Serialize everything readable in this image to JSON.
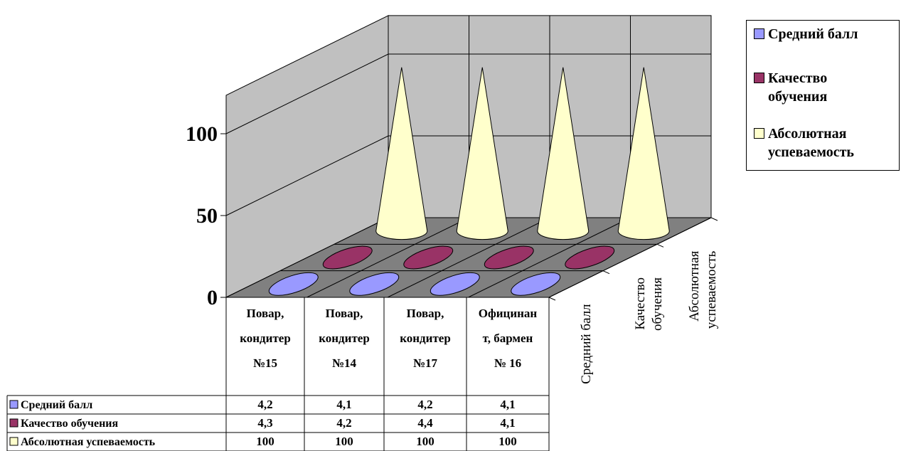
{
  "chart_data": {
    "type": "3d-cone",
    "categories": [
      "Повар, кондитер №15",
      "Повар, кондитер №14",
      "Повар, кондитер №17",
      "Официнант, бармен № 16"
    ],
    "category_lines": [
      [
        "Повар,",
        "кондитер",
        "№15"
      ],
      [
        "Повар,",
        "кондитер",
        "№14"
      ],
      [
        "Повар,",
        "кондитер",
        "№17"
      ],
      [
        "Официнан",
        "т, бармен",
        "№ 16"
      ]
    ],
    "series": [
      {
        "name": "Средний балл",
        "values": [
          4.2,
          4.1,
          4.2,
          4.1
        ],
        "labels": [
          "4,2",
          "4,1",
          "4,2",
          "4,1"
        ],
        "color": "#9999ff"
      },
      {
        "name": "Качество обучения",
        "values": [
          4.3,
          4.2,
          4.4,
          4.1
        ],
        "labels": [
          "4,3",
          "4,2",
          "4,4",
          "4,1"
        ],
        "color": "#993366"
      },
      {
        "name": "Абсолютная успеваемость",
        "values": [
          100,
          100,
          100,
          100
        ],
        "labels": [
          "100",
          "100",
          "100",
          "100"
        ],
        "color": "#ffffcc"
      }
    ],
    "depth_labels": [
      [
        "Средний балл"
      ],
      [
        "Качество",
        "обучения"
      ],
      [
        "Абсолютная",
        "успеваемость"
      ]
    ],
    "y_ticks": [
      "0",
      "50",
      "100"
    ],
    "ylim": [
      0,
      100
    ],
    "legend_position": "top-right",
    "data_table": true,
    "grid": true,
    "wall_color": "#c0c0c0",
    "floor_color": "#808080"
  },
  "legend": {
    "items": [
      {
        "lines": [
          "Средний балл"
        ],
        "color": "#9999ff"
      },
      {
        "lines": [
          "Качество",
          "обучения"
        ],
        "color": "#993366"
      },
      {
        "lines": [
          "Абсолютная",
          "успеваемость"
        ],
        "color": "#ffffcc"
      }
    ]
  }
}
